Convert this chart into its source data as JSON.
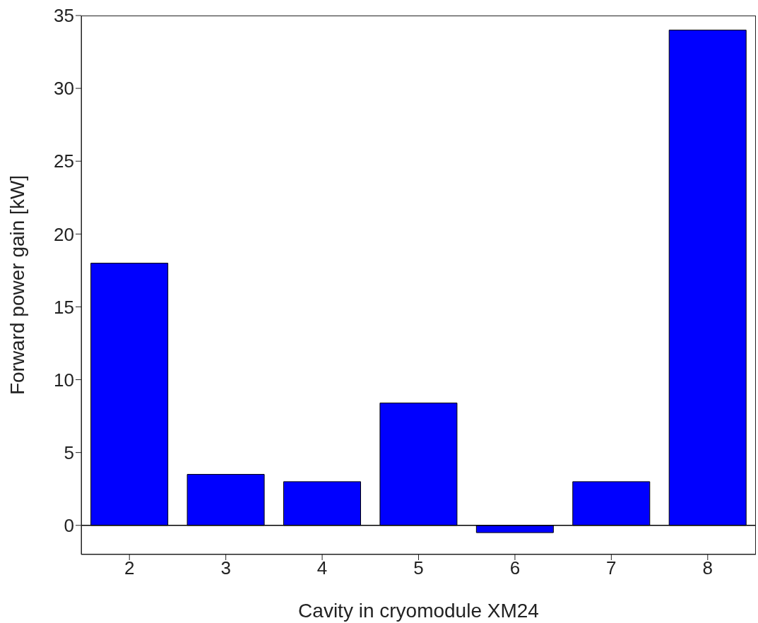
{
  "chart_data": {
    "type": "bar",
    "xlabel": "Cavity in cryomodule XM24",
    "ylabel": "Forward power gain [kW]",
    "categories": [
      "2",
      "3",
      "4",
      "5",
      "6",
      "7",
      "8"
    ],
    "values": [
      18,
      3.5,
      3,
      8.4,
      -0.5,
      3,
      34
    ],
    "color": "#0000ff",
    "ylim": [
      -2,
      35
    ],
    "yticks": [
      0,
      5,
      10,
      15,
      20,
      25,
      30,
      35
    ],
    "ref_lines": [
      {
        "axis": "y",
        "value": 0,
        "color": "#000000"
      }
    ],
    "grid": false
  }
}
